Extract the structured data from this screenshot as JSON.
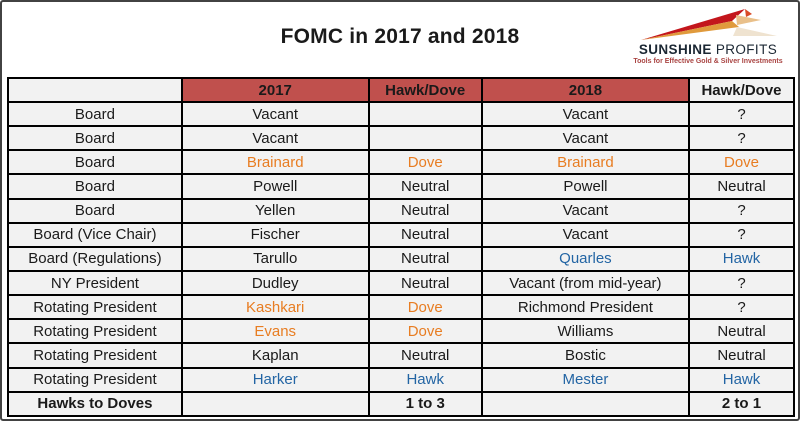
{
  "title": "FOMC in 2017 and 2018",
  "logo": {
    "brand_bold": "SUNSHINE",
    "brand_light": "PROFITS",
    "tagline": "Tools for Effective Gold & Silver Investments"
  },
  "colors": {
    "header_red": "#C0504D",
    "dove_orange": "#E87D22",
    "hawk_blue": "#2365A4",
    "cell_bg": "#F2F2F2",
    "grid_border": "#000000",
    "text": "#1A1A1A",
    "logo_navy": "#1B2733",
    "logo_tagline_red": "#A94442",
    "arrow_red": "#C3161C",
    "arrow_gold": "#E09A3C",
    "arrow_light_gold": "#E9C08A",
    "arrow_tan": "#EFE3D0"
  },
  "table": {
    "col_widths_pct": [
      22.2,
      23.9,
      14.2,
      26.6,
      13.1
    ],
    "headers": [
      {
        "label": "",
        "red": false
      },
      {
        "label": "2017",
        "red": true
      },
      {
        "label": "Hawk/Dove",
        "red": true
      },
      {
        "label": "2018",
        "red": true
      },
      {
        "label": "Hawk/Dove",
        "red": false
      }
    ],
    "rows": [
      {
        "cells": [
          {
            "t": "Board"
          },
          {
            "t": "Vacant"
          },
          {
            "t": ""
          },
          {
            "t": "Vacant"
          },
          {
            "t": "?"
          }
        ]
      },
      {
        "cells": [
          {
            "t": "Board"
          },
          {
            "t": "Vacant"
          },
          {
            "t": ""
          },
          {
            "t": "Vacant"
          },
          {
            "t": "?"
          }
        ]
      },
      {
        "cells": [
          {
            "t": "Board"
          },
          {
            "t": "Brainard",
            "c": "orange"
          },
          {
            "t": "Dove",
            "c": "orange"
          },
          {
            "t": "Brainard",
            "c": "orange"
          },
          {
            "t": "Dove",
            "c": "orange"
          }
        ]
      },
      {
        "cells": [
          {
            "t": "Board"
          },
          {
            "t": "Powell"
          },
          {
            "t": "Neutral"
          },
          {
            "t": "Powell"
          },
          {
            "t": "Neutral"
          }
        ]
      },
      {
        "cells": [
          {
            "t": "Board"
          },
          {
            "t": "Yellen"
          },
          {
            "t": "Neutral"
          },
          {
            "t": "Vacant"
          },
          {
            "t": "?"
          }
        ]
      },
      {
        "cells": [
          {
            "t": "Board (Vice Chair)"
          },
          {
            "t": "Fischer"
          },
          {
            "t": "Neutral"
          },
          {
            "t": "Vacant"
          },
          {
            "t": "?"
          }
        ]
      },
      {
        "cells": [
          {
            "t": "Board (Regulations)"
          },
          {
            "t": "Tarullo"
          },
          {
            "t": "Neutral"
          },
          {
            "t": "Quarles",
            "c": "blue"
          },
          {
            "t": "Hawk",
            "c": "blue"
          }
        ]
      },
      {
        "cells": [
          {
            "t": "NY President"
          },
          {
            "t": "Dudley"
          },
          {
            "t": "Neutral"
          },
          {
            "t": "Vacant (from mid-year)"
          },
          {
            "t": "?"
          }
        ]
      },
      {
        "cells": [
          {
            "t": "Rotating President"
          },
          {
            "t": "Kashkari",
            "c": "orange"
          },
          {
            "t": "Dove",
            "c": "orange"
          },
          {
            "t": "Richmond President"
          },
          {
            "t": "?"
          }
        ]
      },
      {
        "cells": [
          {
            "t": "Rotating President"
          },
          {
            "t": "Evans",
            "c": "orange"
          },
          {
            "t": "Dove",
            "c": "orange"
          },
          {
            "t": "Williams"
          },
          {
            "t": "Neutral"
          }
        ]
      },
      {
        "cells": [
          {
            "t": "Rotating President"
          },
          {
            "t": "Kaplan"
          },
          {
            "t": "Neutral"
          },
          {
            "t": "Bostic"
          },
          {
            "t": "Neutral"
          }
        ]
      },
      {
        "cells": [
          {
            "t": "Rotating President"
          },
          {
            "t": "Harker",
            "c": "blue"
          },
          {
            "t": "Hawk",
            "c": "blue"
          },
          {
            "t": "Mester",
            "c": "blue"
          },
          {
            "t": "Hawk",
            "c": "blue"
          }
        ]
      },
      {
        "bold": true,
        "cells": [
          {
            "t": "Hawks to Doves"
          },
          {
            "t": ""
          },
          {
            "t": "1 to 3"
          },
          {
            "t": ""
          },
          {
            "t": "2 to 1"
          }
        ]
      }
    ]
  },
  "chart_data": {
    "type": "table",
    "title": "FOMC in 2017 and 2018",
    "columns": [
      "",
      "2017",
      "Hawk/Dove",
      "2018",
      "Hawk/Dove"
    ],
    "rows": [
      [
        "Board",
        "Vacant",
        "",
        "Vacant",
        "?"
      ],
      [
        "Board",
        "Vacant",
        "",
        "Vacant",
        "?"
      ],
      [
        "Board",
        "Brainard",
        "Dove",
        "Brainard",
        "Dove"
      ],
      [
        "Board",
        "Powell",
        "Neutral",
        "Powell",
        "Neutral"
      ],
      [
        "Board",
        "Yellen",
        "Neutral",
        "Vacant",
        "?"
      ],
      [
        "Board (Vice Chair)",
        "Fischer",
        "Neutral",
        "Vacant",
        "?"
      ],
      [
        "Board (Regulations)",
        "Tarullo",
        "Neutral",
        "Quarles",
        "Hawk"
      ],
      [
        "NY President",
        "Dudley",
        "Neutral",
        "Vacant (from mid-year)",
        "?"
      ],
      [
        "Rotating President",
        "Kashkari",
        "Dove",
        "Richmond President",
        "?"
      ],
      [
        "Rotating President",
        "Evans",
        "Dove",
        "Williams",
        "Neutral"
      ],
      [
        "Rotating President",
        "Kaplan",
        "Neutral",
        "Bostic",
        "Neutral"
      ],
      [
        "Rotating President",
        "Harker",
        "Hawk",
        "Mester",
        "Hawk"
      ],
      [
        "Hawks to Doves",
        "",
        "1 to 3",
        "",
        "2 to 1"
      ]
    ]
  }
}
